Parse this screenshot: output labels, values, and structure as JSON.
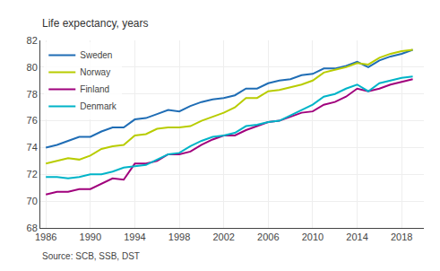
{
  "chart_data": {
    "type": "line",
    "ylabel": "Life expectancy, years",
    "annotations": [
      "Source: SCB, SSB, DST"
    ],
    "x": [
      1986,
      1987,
      1988,
      1989,
      1990,
      1991,
      1992,
      1993,
      1994,
      1995,
      1996,
      1997,
      1998,
      1999,
      2000,
      2001,
      2002,
      2003,
      2004,
      2005,
      2006,
      2007,
      2008,
      2009,
      2010,
      2011,
      2012,
      2013,
      2014,
      2015,
      2016,
      2017,
      2018,
      2019
    ],
    "series": [
      {
        "name": "Sweden",
        "color": "#1f6db5",
        "values": [
          74.0,
          74.2,
          74.5,
          74.8,
          74.8,
          75.2,
          75.5,
          75.5,
          76.1,
          76.2,
          76.5,
          76.8,
          76.7,
          77.1,
          77.4,
          77.6,
          77.7,
          77.9,
          78.4,
          78.4,
          78.8,
          79.0,
          79.1,
          79.4,
          79.5,
          79.9,
          79.9,
          80.1,
          80.4,
          80.0,
          80.5,
          80.8,
          81.0,
          81.3
        ]
      },
      {
        "name": "Norway",
        "color": "#b8cc00",
        "values": [
          72.8,
          73.0,
          73.2,
          73.1,
          73.4,
          73.9,
          74.1,
          74.2,
          74.9,
          75.0,
          75.4,
          75.5,
          75.5,
          75.6,
          76.0,
          76.3,
          76.6,
          77.0,
          77.7,
          77.7,
          78.2,
          78.3,
          78.5,
          78.7,
          79.0,
          79.6,
          79.8,
          80.0,
          80.3,
          80.2,
          80.7,
          81.0,
          81.2,
          81.3
        ]
      },
      {
        "name": "Finland",
        "color": "#a0007c",
        "values": [
          70.5,
          70.7,
          70.7,
          70.9,
          70.9,
          71.3,
          71.7,
          71.6,
          72.8,
          72.8,
          73.0,
          73.5,
          73.5,
          73.7,
          74.2,
          74.6,
          74.9,
          74.9,
          75.3,
          75.6,
          75.9,
          76.0,
          76.3,
          76.6,
          76.7,
          77.2,
          77.4,
          77.8,
          78.4,
          78.2,
          78.4,
          78.7,
          78.9,
          79.1
        ]
      },
      {
        "name": "Denmark",
        "color": "#00b4c8",
        "values": [
          71.8,
          71.8,
          71.7,
          71.8,
          72.0,
          72.0,
          72.2,
          72.5,
          72.6,
          72.7,
          73.1,
          73.5,
          73.6,
          74.1,
          74.5,
          74.8,
          74.9,
          75.1,
          75.6,
          75.7,
          75.9,
          76.0,
          76.4,
          76.8,
          77.2,
          77.8,
          78.0,
          78.4,
          78.7,
          78.2,
          78.8,
          79.0,
          79.2,
          79.3
        ]
      }
    ],
    "xlim": [
      1985.5,
      2020.0
    ],
    "xticks": [
      1986,
      1990,
      1994,
      1998,
      2002,
      2006,
      2010,
      2014,
      2018
    ],
    "ylim": [
      68,
      82
    ],
    "yticks": [
      68,
      70,
      72,
      74,
      76,
      78,
      80,
      82
    ],
    "grid": true,
    "legend": "upper left"
  }
}
